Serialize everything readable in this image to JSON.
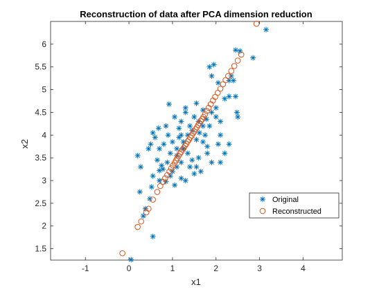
{
  "chart_data": {
    "type": "scatter",
    "title": "Reconstruction of data after PCA dimension reduction",
    "xlabel": "x1",
    "ylabel": "x2",
    "xlim": [
      -1.8,
      4.9
    ],
    "ylim": [
      1.25,
      6.5
    ],
    "xticks": [
      -1,
      0,
      1,
      2,
      3,
      4
    ],
    "yticks": [
      1.5,
      2,
      2.5,
      3,
      3.5,
      4,
      4.5,
      5,
      5.5,
      6
    ],
    "grid": false,
    "legend_position": "lower-right",
    "series": [
      {
        "name": "Original",
        "marker": "asterisk",
        "color": "#0072BD",
        "points": [
          [
            0.05,
            1.26
          ],
          [
            0.55,
            1.77
          ],
          [
            0.33,
            2.22
          ],
          [
            0.25,
            2.75
          ],
          [
            0.52,
            2.86
          ],
          [
            0.7,
            3.0
          ],
          [
            0.85,
            2.98
          ],
          [
            0.7,
            3.22
          ],
          [
            0.75,
            3.33
          ],
          [
            0.2,
            3.55
          ],
          [
            0.27,
            3.3
          ],
          [
            0.45,
            3.7
          ],
          [
            0.5,
            3.8
          ],
          [
            0.55,
            4.05
          ],
          [
            0.6,
            3.95
          ],
          [
            0.7,
            3.7
          ],
          [
            0.8,
            3.8
          ],
          [
            0.9,
            4.0
          ],
          [
            0.85,
            4.2
          ],
          [
            1.0,
            3.85
          ],
          [
            1.1,
            3.7
          ],
          [
            1.1,
            3.55
          ],
          [
            1.2,
            3.4
          ],
          [
            1.0,
            3.2
          ],
          [
            1.05,
            2.9
          ],
          [
            0.95,
            3.1
          ],
          [
            0.92,
            4.68
          ],
          [
            1.2,
            4.3
          ],
          [
            1.3,
            4.5
          ],
          [
            1.3,
            4.6
          ],
          [
            1.4,
            4.2
          ],
          [
            1.35,
            4.0
          ],
          [
            1.5,
            4.4
          ],
          [
            1.6,
            4.3
          ],
          [
            1.55,
            4.7
          ],
          [
            1.7,
            4.55
          ],
          [
            1.7,
            4.2
          ],
          [
            1.8,
            3.75
          ],
          [
            1.8,
            3.6
          ],
          [
            1.6,
            3.5
          ],
          [
            1.55,
            3.3
          ],
          [
            1.65,
            3.2
          ],
          [
            1.4,
            3.3
          ],
          [
            1.3,
            3.0
          ],
          [
            1.2,
            3.05
          ],
          [
            1.5,
            3.15
          ],
          [
            1.85,
            4.2
          ],
          [
            1.9,
            4.5
          ],
          [
            2.0,
            4.4
          ],
          [
            2.0,
            4.6
          ],
          [
            2.1,
            4.3
          ],
          [
            2.1,
            4.0
          ],
          [
            2.05,
            3.8
          ],
          [
            2.2,
            3.6
          ],
          [
            1.9,
            3.4
          ],
          [
            1.7,
            3.85
          ],
          [
            1.75,
            4.0
          ],
          [
            1.45,
            4.1
          ],
          [
            1.2,
            4.0
          ],
          [
            1.15,
            4.15
          ],
          [
            1.25,
            3.85
          ],
          [
            0.95,
            3.6
          ],
          [
            0.88,
            3.4
          ],
          [
            0.78,
            3.25
          ],
          [
            0.65,
            3.45
          ],
          [
            0.55,
            3.1
          ],
          [
            0.48,
            2.6
          ],
          [
            0.38,
            2.38
          ],
          [
            1.1,
            3.3
          ],
          [
            1.25,
            3.7
          ],
          [
            2.3,
            4.85
          ],
          [
            2.45,
            4.85
          ],
          [
            2.4,
            5.2
          ],
          [
            2.3,
            5.2
          ],
          [
            1.95,
            5.55
          ],
          [
            1.85,
            5.5
          ],
          [
            1.9,
            5.3
          ],
          [
            2.05,
            5.15
          ],
          [
            2.2,
            4.8
          ],
          [
            2.45,
            5.87
          ],
          [
            2.55,
            5.85
          ],
          [
            2.35,
            5.3
          ],
          [
            2.48,
            4.5
          ],
          [
            2.5,
            4.4
          ],
          [
            2.3,
            3.8
          ],
          [
            2.1,
            3.4
          ],
          [
            2.85,
            5.7
          ],
          [
            3.15,
            6.32
          ],
          [
            1.55,
            3.9
          ],
          [
            1.35,
            3.6
          ],
          [
            1.45,
            3.45
          ],
          [
            0.68,
            4.15
          ],
          [
            1.62,
            4.05
          ],
          [
            1.78,
            4.35
          ],
          [
            1.05,
            4.4
          ],
          [
            1.15,
            3.95
          ]
        ]
      },
      {
        "name": "Reconstructed",
        "marker": "circle",
        "color": "#D95319",
        "points": [
          [
            -0.15,
            1.4
          ],
          [
            0.2,
            1.98
          ],
          [
            0.28,
            2.1
          ],
          [
            0.4,
            2.3
          ],
          [
            0.45,
            2.38
          ],
          [
            0.55,
            2.58
          ],
          [
            0.65,
            2.75
          ],
          [
            0.72,
            2.88
          ],
          [
            0.78,
            2.97
          ],
          [
            0.83,
            3.05
          ],
          [
            0.88,
            3.12
          ],
          [
            0.93,
            3.2
          ],
          [
            0.97,
            3.27
          ],
          [
            1.01,
            3.33
          ],
          [
            1.05,
            3.39
          ],
          [
            1.08,
            3.44
          ],
          [
            1.11,
            3.49
          ],
          [
            1.14,
            3.54
          ],
          [
            1.17,
            3.59
          ],
          [
            1.2,
            3.63
          ],
          [
            1.23,
            3.68
          ],
          [
            1.26,
            3.72
          ],
          [
            1.29,
            3.77
          ],
          [
            1.32,
            3.81
          ],
          [
            1.35,
            3.86
          ],
          [
            1.38,
            3.9
          ],
          [
            1.41,
            3.95
          ],
          [
            1.44,
            3.99
          ],
          [
            1.47,
            4.04
          ],
          [
            1.5,
            4.08
          ],
          [
            1.53,
            4.13
          ],
          [
            1.56,
            4.17
          ],
          [
            1.59,
            4.22
          ],
          [
            1.62,
            4.26
          ],
          [
            1.65,
            4.31
          ],
          [
            1.68,
            4.35
          ],
          [
            1.71,
            4.4
          ],
          [
            1.75,
            4.46
          ],
          [
            1.79,
            4.53
          ],
          [
            1.83,
            4.6
          ],
          [
            1.88,
            4.68
          ],
          [
            1.93,
            4.76
          ],
          [
            1.98,
            4.84
          ],
          [
            2.04,
            4.93
          ],
          [
            2.1,
            5.02
          ],
          [
            2.16,
            5.12
          ],
          [
            2.22,
            5.21
          ],
          [
            2.28,
            5.3
          ],
          [
            2.35,
            5.41
          ],
          [
            2.42,
            5.52
          ],
          [
            2.5,
            5.64
          ],
          [
            2.58,
            5.77
          ],
          [
            2.93,
            6.45
          ]
        ]
      }
    ]
  }
}
